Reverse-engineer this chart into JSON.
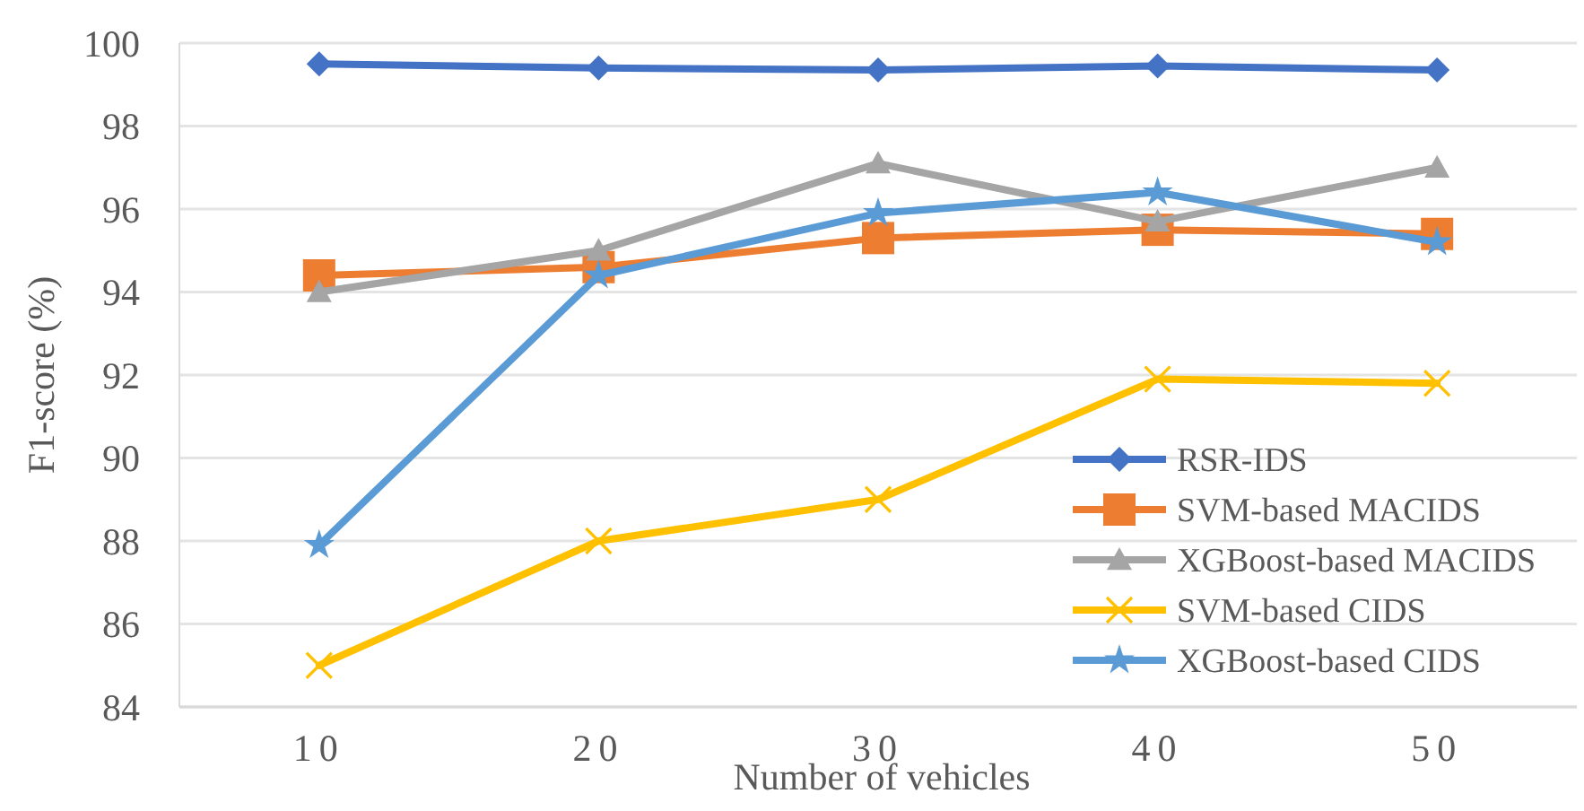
{
  "chart_data": {
    "type": "line",
    "xlabel": "Number of vehicles",
    "ylabel": "F1-score (%)",
    "categories": [
      "10",
      "20",
      "30",
      "40",
      "50"
    ],
    "ylim": [
      84,
      100
    ],
    "yticks": [
      84,
      86,
      88,
      90,
      92,
      94,
      96,
      98,
      100
    ],
    "grid": "y",
    "legend": "bottom right",
    "series": [
      {
        "name": "RSR-IDS",
        "color": "#4472c4",
        "marker": "diamond",
        "values": [
          99.5,
          99.4,
          99.35,
          99.45,
          99.35
        ]
      },
      {
        "name": "SVM-based MACIDS",
        "color": "#ed7d31",
        "marker": "square",
        "values": [
          94.4,
          94.6,
          95.3,
          95.5,
          95.4
        ]
      },
      {
        "name": "XGBoost-based MACIDS",
        "color": "#a5a5a5",
        "marker": "triangle",
        "values": [
          94.0,
          95.0,
          97.1,
          95.7,
          97.0
        ]
      },
      {
        "name": "SVM-based CIDS",
        "color": "#ffc000",
        "marker": "cross",
        "values": [
          85.0,
          88.0,
          89.0,
          91.9,
          91.8
        ]
      },
      {
        "name": "XGBoost-based CIDS",
        "color": "#5b9bd5",
        "marker": "star",
        "values": [
          87.9,
          94.4,
          95.9,
          96.4,
          95.2
        ]
      }
    ]
  }
}
